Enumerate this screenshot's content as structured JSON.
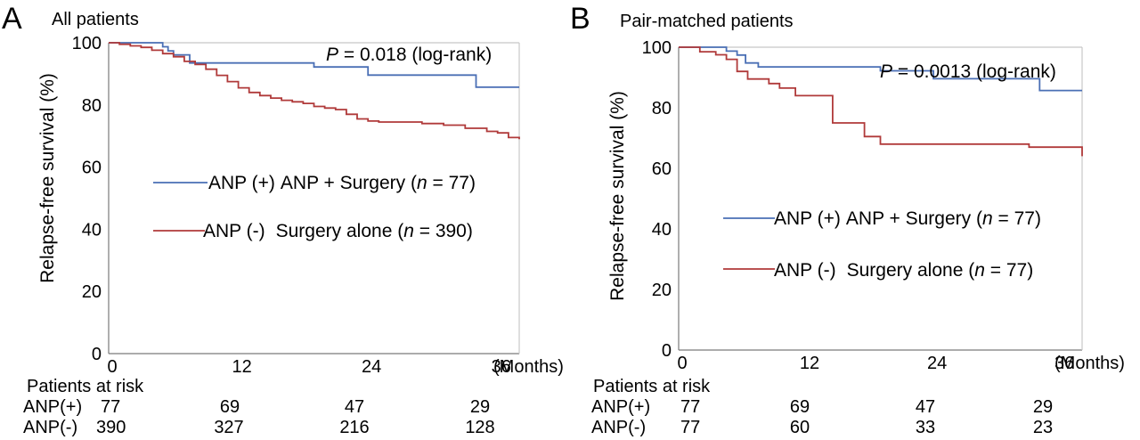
{
  "chart_data": [
    {
      "type": "line",
      "panel_label": "A",
      "title": "All patients",
      "ylabel": "Relapse-free survival (%)",
      "xlabel": "",
      "x_unit_label": "(Months)",
      "xlim": [
        0,
        38
      ],
      "ylim": [
        0,
        100
      ],
      "x_ticks": [
        "0",
        "12",
        "24",
        "36"
      ],
      "y_ticks": [
        "0",
        "20",
        "40",
        "60",
        "80",
        "100"
      ],
      "pvalue_label": "P",
      "pvalue_text": " = 0.018 (log-rank)",
      "series": [
        {
          "name": "ANP (+) ANP + Surgery (n = 77)",
          "legend_group": "ANP (+)",
          "legend_desc": "ANP + Surgery",
          "legend_n": "77",
          "color": "#4a6fb5",
          "x": [
            0,
            2.3,
            5,
            5.5,
            6,
            7.5,
            19,
            24,
            34,
            38
          ],
          "y": [
            100,
            100,
            98.7,
            97.4,
            96.1,
            93.5,
            92.2,
            89.6,
            85.7,
            85.7
          ]
        },
        {
          "name": "ANP (-) Surgery alone (n = 390)",
          "legend_group": "ANP (-)",
          "legend_desc": "Surgery alone",
          "legend_n": "390",
          "color": "#b03a3a",
          "x": [
            0,
            1,
            2,
            3,
            4,
            5,
            6,
            7,
            8,
            9,
            10,
            11,
            12,
            13,
            14,
            15,
            16,
            17,
            18,
            19,
            20,
            21,
            22,
            23,
            24,
            25,
            27,
            29,
            31,
            33,
            35,
            36,
            37,
            38
          ],
          "y": [
            100,
            99.5,
            99,
            98.5,
            97.6,
            96.5,
            95.5,
            94,
            93,
            91.5,
            89.5,
            87.5,
            85.5,
            84,
            83,
            82.2,
            81.5,
            81,
            80.5,
            79.5,
            79,
            78.5,
            77,
            75.5,
            74.8,
            74.5,
            74.5,
            74,
            73.5,
            72.5,
            71.5,
            71,
            69.5,
            69
          ]
        }
      ],
      "risk_table": {
        "header": "Patients at risk",
        "rows": [
          {
            "label": "ANP(+)",
            "values": [
              "77",
              "69",
              "47",
              "29"
            ]
          },
          {
            "label": "ANP(-)",
            "values": [
              "390",
              "327",
              "216",
              "128"
            ]
          }
        ]
      }
    },
    {
      "type": "line",
      "panel_label": "B",
      "title": "Pair-matched patients",
      "ylabel": "Relapse-free survival (%)",
      "xlabel": "",
      "x_unit_label": "(Months)",
      "xlim": [
        0,
        38
      ],
      "ylim": [
        0,
        100
      ],
      "x_ticks": [
        "0",
        "12",
        "24",
        "36"
      ],
      "y_ticks": [
        "0",
        "20",
        "40",
        "60",
        "80",
        "100"
      ],
      "pvalue_label": "P",
      "pvalue_text": " = 0.0013 (log-rank)",
      "series": [
        {
          "name": "ANP (+) ANP + Surgery (n = 77)",
          "legend_group": "ANP (+)",
          "legend_desc": "ANP + Surgery",
          "legend_n": "77",
          "color": "#4a6fb5",
          "x": [
            0,
            4.5,
            5.5,
            6.3,
            7.5,
            19,
            24,
            34,
            38
          ],
          "y": [
            100,
            98.7,
            97.4,
            94.8,
            93.5,
            92.2,
            89.6,
            85.7,
            85.7
          ]
        },
        {
          "name": "ANP (-) Surgery alone (n = 77)",
          "legend_group": "ANP (-)",
          "legend_desc": "Surgery alone",
          "legend_n": "77",
          "color": "#b03a3a",
          "x": [
            0,
            2,
            3.5,
            4.5,
            5.5,
            6.5,
            8.5,
            9.5,
            11,
            14.5,
            17.5,
            19,
            33,
            38
          ],
          "y": [
            100,
            98.5,
            97.5,
            96,
            92,
            89.5,
            88,
            86.5,
            84,
            75,
            70.5,
            68,
            67,
            64
          ]
        }
      ],
      "risk_table": {
        "header": "Patients at risk",
        "rows": [
          {
            "label": "ANP(+)",
            "values": [
              "77",
              "69",
              "47",
              "29"
            ]
          },
          {
            "label": "ANP(-)",
            "values": [
              "77",
              "60",
              "33",
              "23"
            ]
          }
        ]
      }
    }
  ]
}
